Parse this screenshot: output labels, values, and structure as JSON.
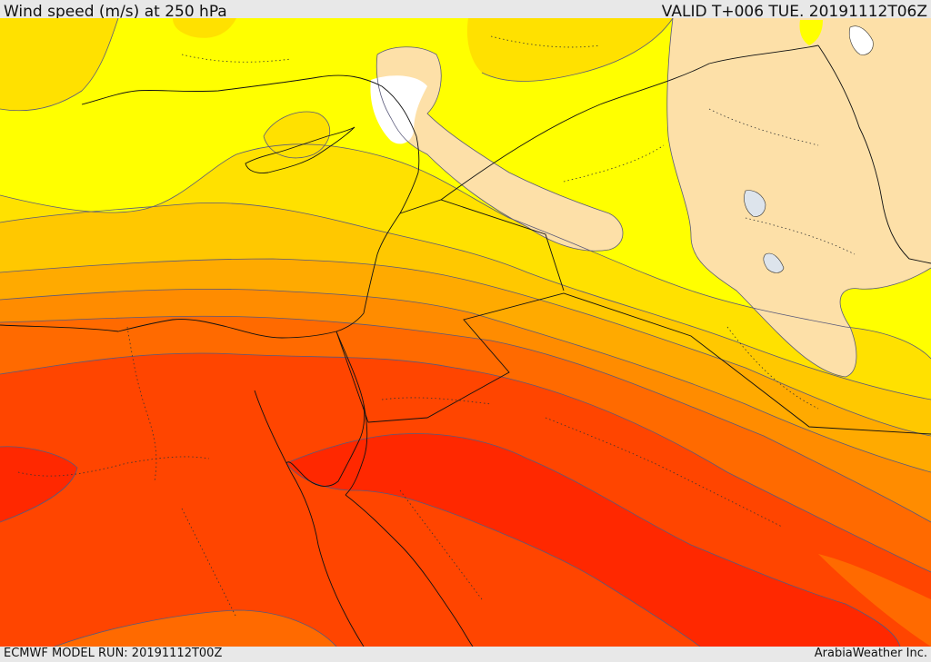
{
  "header": {
    "title": "Wind speed (m/s) at 250 hPa",
    "valid": "VALID T+006 TUE. 20191112T06Z"
  },
  "footer": {
    "model_run": "ECMWF MODEL RUN: 20191112T00Z",
    "credit": "ArabiaWeather Inc."
  },
  "map": {
    "field": "wind speed at 250 hPa",
    "region": "Eastern Mediterranean, Egypt, Levant, Iraq",
    "colors": {
      "lightest": "#ffffff",
      "peach": "#fde0a8",
      "yellow": "#ffff00",
      "gold": "#ffe100",
      "amber": "#ffc800",
      "orange_light": "#ffaa00",
      "orange": "#ff8c00",
      "orange_dark": "#ff6a00",
      "red_orange": "#ff4500",
      "red": "#ff2800"
    }
  }
}
